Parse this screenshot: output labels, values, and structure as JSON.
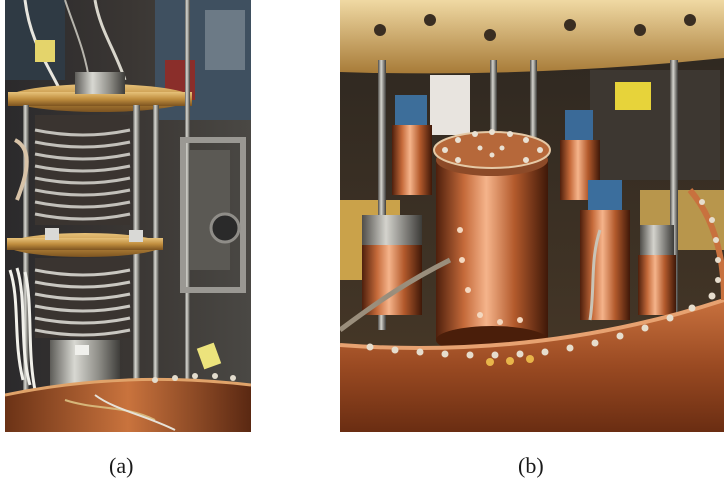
{
  "panels": [
    {
      "id": "a",
      "caption": "(a)"
    },
    {
      "id": "b",
      "caption": "(b)"
    }
  ],
  "colors": {
    "copper": "#c0733f",
    "gold_plate": "#c99a48",
    "steel": "#a9a9a6",
    "dark_background": "#2a2520"
  }
}
